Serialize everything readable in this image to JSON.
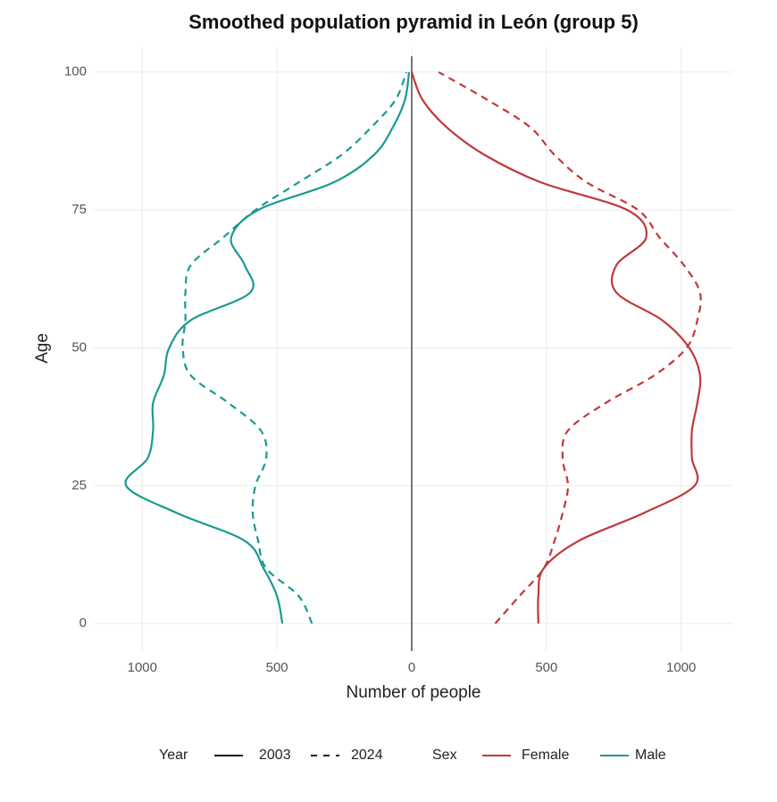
{
  "chart_data": {
    "type": "line",
    "title": "Smoothed population pyramid in León (group 5)",
    "x_label": "Number of people",
    "y_label": "Age",
    "ages": [
      0,
      5,
      10,
      15,
      20,
      25,
      30,
      35,
      40,
      45,
      50,
      55,
      60,
      65,
      70,
      75,
      80,
      85,
      90,
      95,
      100
    ],
    "series": [
      {
        "color": "#c0393b",
        "dashed": false,
        "values": [
          470,
          470,
          490,
          620,
          860,
          1050,
          1040,
          1040,
          1060,
          1070,
          1030,
          930,
          760,
          760,
          870,
          800,
          480,
          270,
          130,
          40,
          0
        ]
      },
      {
        "color": "#c0393b",
        "dashed": true,
        "values": [
          310,
          400,
          490,
          530,
          560,
          580,
          560,
          580,
          720,
          900,
          1020,
          1060,
          1070,
          1010,
          920,
          840,
          650,
          530,
          440,
          280,
          100
        ]
      },
      {
        "color": "#1a9a92",
        "dashed": false,
        "values": [
          -480,
          -500,
          -550,
          -620,
          -870,
          -1060,
          -980,
          -960,
          -960,
          -920,
          -900,
          -820,
          -600,
          -620,
          -670,
          -570,
          -290,
          -140,
          -70,
          -25,
          -10
        ]
      },
      {
        "color": "#1a9a92",
        "dashed": true,
        "values": [
          -370,
          -420,
          -540,
          -570,
          -590,
          -580,
          -540,
          -560,
          -680,
          -820,
          -850,
          -840,
          -840,
          -820,
          -700,
          -580,
          -420,
          -260,
          -150,
          -60,
          -20
        ]
      }
    ],
    "xlim": [
      -1180,
      1190
    ],
    "xticks": [
      {
        "value": -1000,
        "label": "1000"
      },
      {
        "value": -500,
        "label": "500"
      },
      0,
      500,
      1000
    ],
    "ylim": [
      -5,
      104.5
    ],
    "yticks": [
      0,
      25,
      50,
      75,
      100
    ],
    "grid": true,
    "legend": {
      "year_title": "Year",
      "years": [
        "2003",
        "2024"
      ],
      "sex_title": "Sex",
      "sexes": [
        "Female",
        "Male"
      ],
      "sex_colors": [
        "#c0393b",
        "#1a9a92"
      ]
    }
  }
}
